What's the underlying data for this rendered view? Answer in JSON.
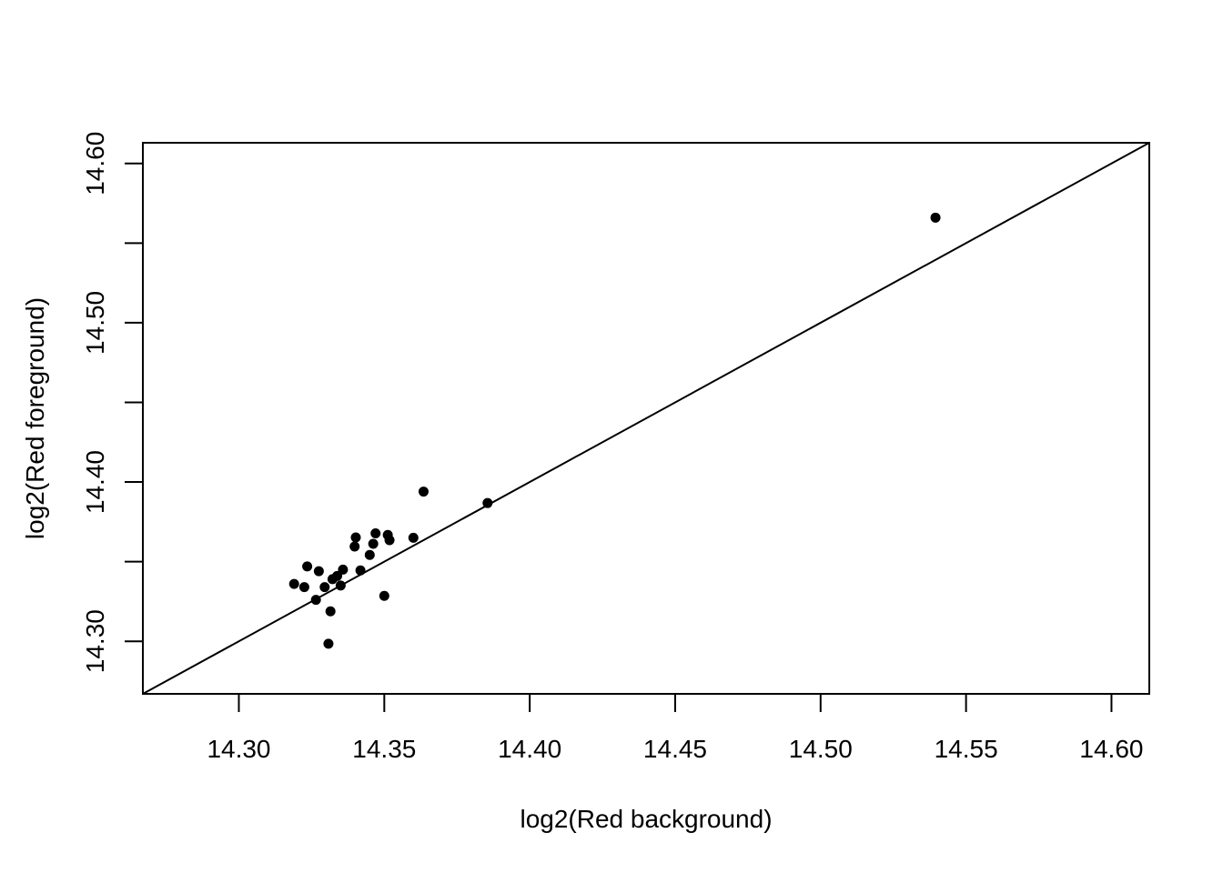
{
  "chart_data": {
    "type": "scatter",
    "title": "",
    "xlabel": "log2(Red background)",
    "ylabel": "log2(Red foreground)",
    "xlim": [
      14.267,
      14.613
    ],
    "ylim": [
      14.267,
      14.613
    ],
    "x_ticks": [
      "14.30",
      "14.35",
      "14.40",
      "14.45",
      "14.50",
      "14.55",
      "14.60"
    ],
    "y_ticks": [
      "14.30",
      "14.40",
      "14.50",
      "14.60"
    ],
    "y_minor_ticks": [
      14.35,
      14.45,
      14.55
    ],
    "grid": false,
    "reference_line": "y = x",
    "point_color": "#000000",
    "points": [
      {
        "x": 14.319,
        "y": 14.336
      },
      {
        "x": 14.3225,
        "y": 14.334
      },
      {
        "x": 14.3235,
        "y": 14.347
      },
      {
        "x": 14.3265,
        "y": 14.326
      },
      {
        "x": 14.3275,
        "y": 14.344
      },
      {
        "x": 14.3295,
        "y": 14.334
      },
      {
        "x": 14.3308,
        "y": 14.2985
      },
      {
        "x": 14.3315,
        "y": 14.3188
      },
      {
        "x": 14.3322,
        "y": 14.339
      },
      {
        "x": 14.3338,
        "y": 14.341
      },
      {
        "x": 14.335,
        "y": 14.335
      },
      {
        "x": 14.3358,
        "y": 14.345
      },
      {
        "x": 14.3398,
        "y": 14.3595
      },
      {
        "x": 14.3402,
        "y": 14.3652
      },
      {
        "x": 14.3418,
        "y": 14.3445
      },
      {
        "x": 14.345,
        "y": 14.3542
      },
      {
        "x": 14.3462,
        "y": 14.3612
      },
      {
        "x": 14.347,
        "y": 14.3678
      },
      {
        "x": 14.35,
        "y": 14.3285
      },
      {
        "x": 14.3512,
        "y": 14.3668
      },
      {
        "x": 14.3518,
        "y": 14.3635
      },
      {
        "x": 14.36,
        "y": 14.365
      },
      {
        "x": 14.3635,
        "y": 14.394
      },
      {
        "x": 14.3855,
        "y": 14.3868
      },
      {
        "x": 14.5395,
        "y": 14.566
      }
    ]
  }
}
